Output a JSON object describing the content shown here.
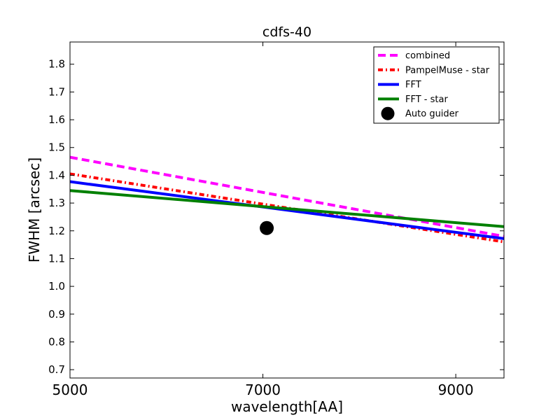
{
  "chart_data": {
    "type": "line",
    "title": "cdfs-40",
    "xlabel": "wavelength[AA]",
    "ylabel": "FWHM [arcsec]",
    "xlim": [
      5000,
      9500
    ],
    "ylim": [
      0.67,
      1.88
    ],
    "xticks": [
      5000,
      7000,
      9000
    ],
    "xtick_labels": [
      "5000",
      "7000",
      "9000"
    ],
    "yticks": [
      0.7,
      0.8,
      0.9,
      1.0,
      1.1,
      1.2,
      1.3,
      1.4,
      1.5,
      1.6,
      1.7,
      1.8
    ],
    "ytick_labels": [
      "0.7",
      "0.8",
      "0.9",
      "1.0",
      "1.1",
      "1.2",
      "1.3",
      "1.4",
      "1.5",
      "1.6",
      "1.7",
      "1.8"
    ],
    "grid": false,
    "legend_position": "top-right",
    "series": [
      {
        "name": "combined",
        "kind": "line",
        "style": "dashed",
        "color": "#ff00ff",
        "x": [
          5000,
          9500
        ],
        "y": [
          1.465,
          1.18
        ]
      },
      {
        "name": "PampelMuse - star",
        "kind": "line",
        "style": "dashdot",
        "color": "#ff0000",
        "x": [
          5000,
          9500
        ],
        "y": [
          1.405,
          1.16
        ]
      },
      {
        "name": "FFT",
        "kind": "line",
        "style": "solid",
        "color": "#0000ff",
        "x": [
          5000,
          9500
        ],
        "y": [
          1.377,
          1.172
        ]
      },
      {
        "name": "FFT - star",
        "kind": "line",
        "style": "solid",
        "color": "#008000",
        "x": [
          5000,
          9500
        ],
        "y": [
          1.345,
          1.215
        ]
      },
      {
        "name": "Auto guider",
        "kind": "point",
        "color": "#000000",
        "x": [
          7040
        ],
        "y": [
          1.21
        ]
      }
    ]
  }
}
